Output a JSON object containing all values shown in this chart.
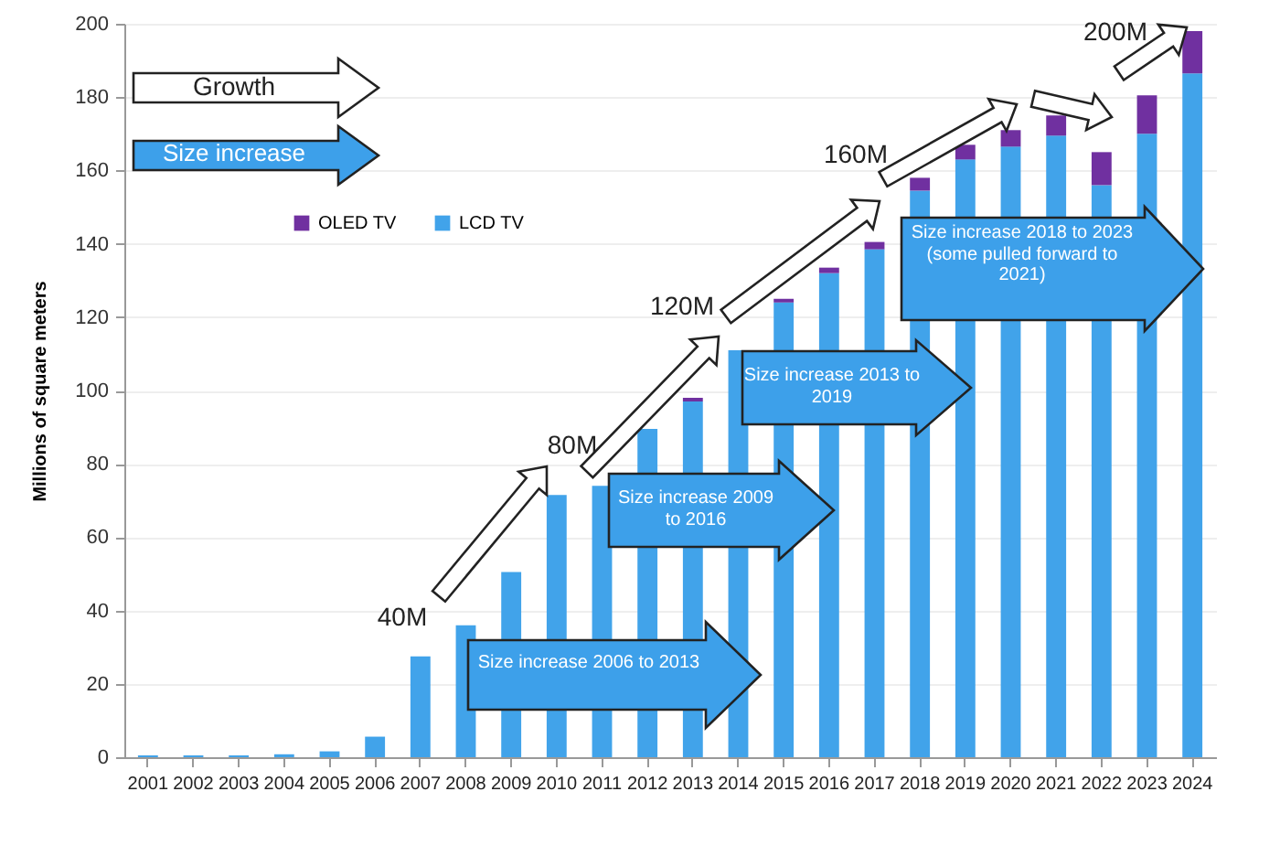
{
  "chart_data": {
    "type": "bar",
    "stacked": true,
    "ylabel": "Millions of square meters",
    "categories": [
      "2001",
      "2002",
      "2003",
      "2004",
      "2005",
      "2006",
      "2007",
      "2008",
      "2009",
      "2010",
      "2011",
      "2012",
      "2013",
      "2014",
      "2015",
      "2016",
      "2017",
      "2018",
      "2019",
      "2020",
      "2021",
      "2022",
      "2023",
      "2024"
    ],
    "series": [
      {
        "name": "LCD TV",
        "color": "#41a3ea",
        "values": [
          0.5,
          0.5,
          0.5,
          0.8,
          1.6,
          5.6,
          27.5,
          36,
          50.5,
          71.5,
          74,
          89.5,
          97,
          111,
          124,
          132,
          138.5,
          154.5,
          163,
          166.5,
          169.5,
          156,
          170,
          186.5
        ]
      },
      {
        "name": "OLED TV",
        "color": "#7030a0",
        "values": [
          null,
          null,
          null,
          null,
          null,
          null,
          null,
          null,
          null,
          null,
          null,
          null,
          1,
          null,
          1,
          1.5,
          2,
          3.5,
          4,
          4.5,
          5.5,
          9,
          10.5,
          11.5
        ]
      }
    ],
    "ylim": [
      0,
      200
    ],
    "yticks": [
      0,
      20,
      40,
      60,
      80,
      100,
      120,
      140,
      160,
      180,
      200
    ],
    "grid": "y",
    "legend": "top left",
    "annotations": [
      "Growth",
      "Size increase",
      "40M",
      "80M",
      "120M",
      "160M",
      "200M",
      "Size increase 2006 to 2013",
      "Size increase 2009 to 2016",
      "Size increase 2013 to 2019",
      "Size increase 2018 to 2023 (some pulled forward to 2021)"
    ]
  }
}
